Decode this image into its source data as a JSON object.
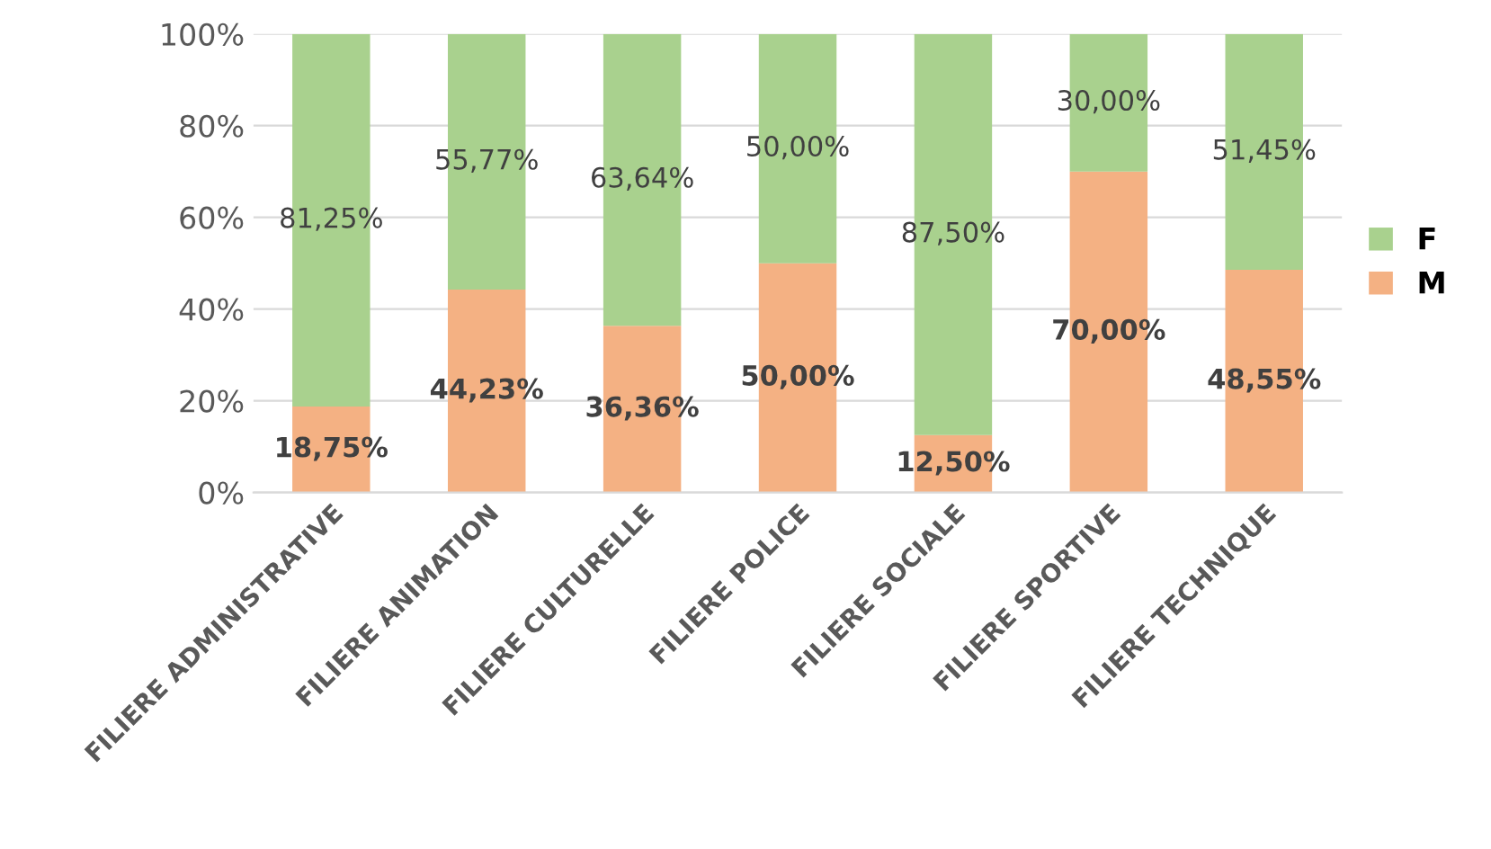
{
  "chart_data": {
    "type": "bar",
    "stacked": true,
    "categories": [
      "FILIERE ADMINISTRATIVE",
      "FILIERE ANIMATION",
      "FILIERE CULTURELLE",
      "FILIERE POLICE",
      "FILIERE SOCIALE",
      "FILIERE SPORTIVE",
      "FILIERE TECHNIQUE"
    ],
    "series": [
      {
        "name": "M",
        "color": "#f4b183",
        "values": [
          18.75,
          44.23,
          36.36,
          50.0,
          12.5,
          70.0,
          48.55
        ],
        "value_labels": [
          "18,75%",
          "44,23%",
          "36,36%",
          "50,00%",
          "12,50%",
          "70,00%",
          "48,55%"
        ]
      },
      {
        "name": "F",
        "color": "#a9d18e",
        "values": [
          81.25,
          55.77,
          63.64,
          50.0,
          87.5,
          30.0,
          51.45
        ],
        "value_labels": [
          "81,25%",
          "55,77%",
          "63,64%",
          "50,00%",
          "87,50%",
          "30,00%",
          "51,45%"
        ]
      }
    ],
    "ylim": [
      0,
      100
    ],
    "yticks": [
      {
        "value": 0,
        "label": "0%"
      },
      {
        "value": 20,
        "label": "20%"
      },
      {
        "value": 40,
        "label": "40%"
      },
      {
        "value": 60,
        "label": "60%"
      },
      {
        "value": 80,
        "label": "80%"
      },
      {
        "value": 100,
        "label": "100%"
      }
    ],
    "grid": "y",
    "legend": "right"
  }
}
